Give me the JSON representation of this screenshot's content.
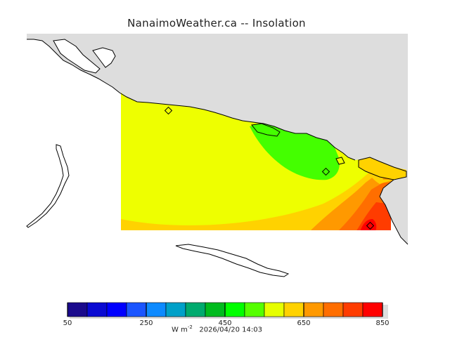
{
  "title": "NanaimoWeather.ca -- Insolation",
  "footer": {
    "unit_prefix": "W m",
    "unit_exp": "-2",
    "timestamp": "2026/04/20 14:03"
  },
  "colors": {
    "land": "#dddddd",
    "water": "#ffffff",
    "coast": "#000000",
    "domain_base": "#eeff00"
  },
  "legend": {
    "min": 50,
    "max": 850,
    "tick_labels": [
      "50",
      "250",
      "450",
      "650",
      "850"
    ],
    "tick_values": [
      50,
      250,
      450,
      650,
      850
    ],
    "bins": [
      {
        "from": 50,
        "to": 100,
        "color": "#1a0a8c"
      },
      {
        "from": 100,
        "to": 150,
        "color": "#0a0ad2"
      },
      {
        "from": 150,
        "to": 200,
        "color": "#0000ff"
      },
      {
        "from": 200,
        "to": 250,
        "color": "#1a55ff"
      },
      {
        "from": 250,
        "to": 300,
        "color": "#0d8aff"
      },
      {
        "from": 300,
        "to": 350,
        "color": "#00a0c8"
      },
      {
        "from": 350,
        "to": 400,
        "color": "#00aa6e"
      },
      {
        "from": 400,
        "to": 450,
        "color": "#00bb1e"
      },
      {
        "from": 450,
        "to": 500,
        "color": "#00ff00"
      },
      {
        "from": 500,
        "to": 550,
        "color": "#55ff00"
      },
      {
        "from": 550,
        "to": 600,
        "color": "#e6ff00"
      },
      {
        "from": 600,
        "to": 650,
        "color": "#ffd200"
      },
      {
        "from": 650,
        "to": 700,
        "color": "#ff9900"
      },
      {
        "from": 700,
        "to": 750,
        "color": "#ff6e00"
      },
      {
        "from": 750,
        "to": 800,
        "color": "#ff3c00"
      },
      {
        "from": 800,
        "to": 850,
        "color": "#ff0000"
      }
    ]
  },
  "markers": [
    "station-1",
    "station-2",
    "station-3"
  ]
}
